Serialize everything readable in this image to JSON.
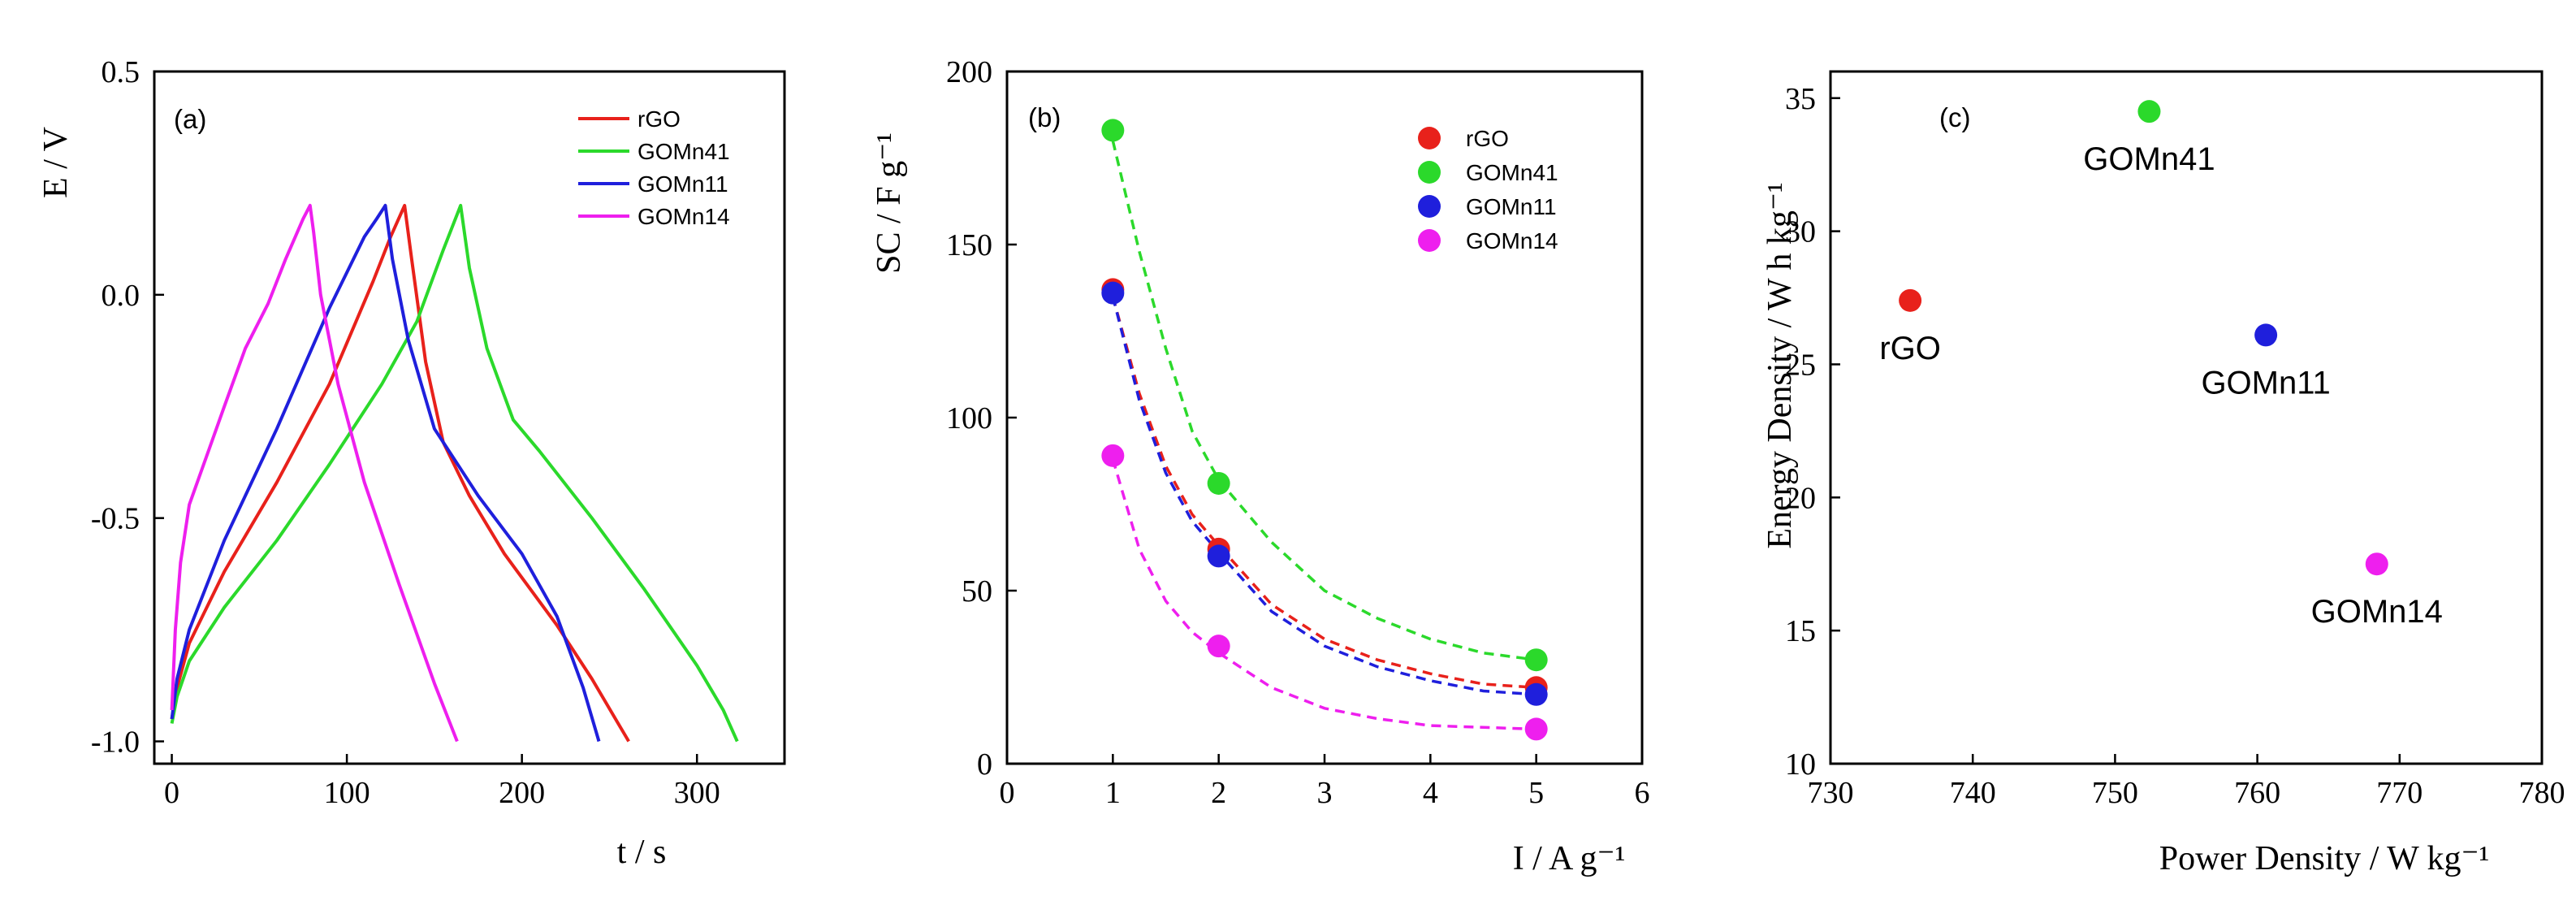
{
  "chart_data": [
    {
      "panel_label": "(a)",
      "type": "line",
      "xlabel": "t / s",
      "ylabel": "E / V",
      "xlim": [
        -10,
        350
      ],
      "ylim": [
        -1.05,
        0.5
      ],
      "xticks": [
        0,
        100,
        200,
        300
      ],
      "xtick_labels": [
        "0",
        "100",
        "200",
        "300"
      ],
      "yticks": [
        0.5,
        0.0,
        -0.5,
        -1.0
      ],
      "ytick_labels": [
        "0.5",
        "0.0",
        "-0.5",
        "-1.0"
      ],
      "legend": {
        "location": "top-right"
      },
      "series": [
        {
          "name": "rGO",
          "color": "#e8211b",
          "x": [
            0,
            3,
            10,
            30,
            60,
            90,
            115,
            125,
            133,
            137,
            145,
            155,
            170,
            190,
            220,
            240,
            255,
            261
          ],
          "y": [
            -0.95,
            -0.88,
            -0.78,
            -0.62,
            -0.42,
            -0.2,
            0.03,
            0.13,
            0.2,
            0.08,
            -0.15,
            -0.33,
            -0.45,
            -0.58,
            -0.74,
            -0.86,
            -0.96,
            -1.0
          ]
        },
        {
          "name": "GOMn41",
          "color": "#2bd92b",
          "x": [
            0,
            3,
            10,
            30,
            60,
            90,
            120,
            140,
            155,
            165,
            170,
            180,
            195,
            210,
            240,
            270,
            300,
            315,
            323
          ],
          "y": [
            -0.96,
            -0.9,
            -0.82,
            -0.7,
            -0.55,
            -0.38,
            -0.2,
            -0.06,
            0.1,
            0.2,
            0.06,
            -0.12,
            -0.28,
            -0.35,
            -0.5,
            -0.66,
            -0.83,
            -0.93,
            -1.0
          ]
        },
        {
          "name": "GOMn11",
          "color": "#1f1fdc",
          "x": [
            0,
            3,
            10,
            30,
            60,
            90,
            110,
            117,
            122,
            126,
            135,
            150,
            175,
            200,
            220,
            235,
            244
          ],
          "y": [
            -0.95,
            -0.86,
            -0.75,
            -0.55,
            -0.3,
            -0.03,
            0.13,
            0.17,
            0.2,
            0.08,
            -0.1,
            -0.3,
            -0.45,
            -0.58,
            -0.72,
            -0.88,
            -1.0
          ]
        },
        {
          "name": "GOMn14",
          "color": "#ee1fee",
          "x": [
            0,
            2,
            5,
            10,
            20,
            30,
            42,
            55,
            65,
            75,
            79,
            81,
            85,
            95,
            110,
            130,
            150,
            163
          ],
          "y": [
            -0.93,
            -0.75,
            -0.6,
            -0.47,
            -0.36,
            -0.25,
            -0.12,
            -0.02,
            0.08,
            0.17,
            0.2,
            0.14,
            0.0,
            -0.2,
            -0.42,
            -0.65,
            -0.87,
            -1.0
          ]
        }
      ]
    },
    {
      "panel_label": "(b)",
      "type": "scatter",
      "xlabel": "I / A g⁻¹",
      "ylabel": "SC / F g⁻¹",
      "xlim": [
        0,
        6
      ],
      "ylim": [
        0,
        200
      ],
      "xticks": [
        0,
        1,
        2,
        3,
        4,
        5,
        6
      ],
      "xtick_labels": [
        "0",
        "1",
        "2",
        "3",
        "4",
        "5",
        "6"
      ],
      "yticks": [
        0,
        50,
        100,
        150,
        200
      ],
      "ytick_labels": [
        "0",
        "50",
        "100",
        "150",
        "200"
      ],
      "legend": {
        "location": "top-right"
      },
      "fit_line_style": "dashed",
      "series": [
        {
          "name": "rGO",
          "color": "#e8211b",
          "x": [
            1,
            2,
            5
          ],
          "y": [
            137,
            62,
            22
          ],
          "fit_x": [
            1,
            1.25,
            1.5,
            1.75,
            2,
            2.5,
            3,
            3.5,
            4,
            4.5,
            5
          ],
          "fit_y": [
            135,
            107,
            86,
            72,
            63,
            46,
            36,
            30,
            26,
            23,
            22
          ]
        },
        {
          "name": "GOMn41",
          "color": "#2bd92b",
          "x": [
            1,
            2,
            5
          ],
          "y": [
            183,
            81,
            30
          ],
          "fit_x": [
            1,
            1.25,
            1.5,
            1.75,
            2,
            2.5,
            3,
            3.5,
            4,
            4.5,
            5
          ],
          "fit_y": [
            180,
            148,
            120,
            96,
            82,
            64,
            50,
            42,
            36,
            32,
            30
          ]
        },
        {
          "name": "GOMn11",
          "color": "#1f1fdc",
          "x": [
            1,
            2,
            5
          ],
          "y": [
            136,
            60,
            20
          ],
          "fit_x": [
            1,
            1.25,
            1.5,
            1.75,
            2,
            2.5,
            3,
            3.5,
            4,
            4.5,
            5
          ],
          "fit_y": [
            135,
            105,
            84,
            70,
            61,
            44,
            34,
            28,
            24,
            21,
            20
          ]
        },
        {
          "name": "GOMn14",
          "color": "#ee1fee",
          "x": [
            1,
            2,
            5
          ],
          "y": [
            89,
            34,
            10
          ],
          "fit_x": [
            1,
            1.25,
            1.5,
            1.75,
            2,
            2.5,
            3,
            3.5,
            4,
            4.5,
            5
          ],
          "fit_y": [
            88,
            62,
            47,
            38,
            32,
            22,
            16,
            13,
            11,
            10.5,
            10
          ]
        }
      ]
    },
    {
      "panel_label": "(c)",
      "type": "scatter",
      "xlabel": "Power Density / W kg⁻¹",
      "ylabel": "Energy Density / W h kg⁻¹",
      "xlim": [
        730,
        780
      ],
      "ylim": [
        10,
        36
      ],
      "xticks": [
        730,
        740,
        750,
        760,
        770,
        780
      ],
      "xtick_labels": [
        "730",
        "740",
        "750",
        "760",
        "770",
        "780"
      ],
      "yticks": [
        10,
        15,
        20,
        25,
        30,
        35
      ],
      "ytick_labels": [
        "10",
        "15",
        "20",
        "25",
        "30",
        "35"
      ],
      "points": [
        {
          "name": "rGO",
          "color": "#e8211b",
          "x": 735.6,
          "y": 27.4,
          "label_anchor": "below"
        },
        {
          "name": "GOMn41",
          "color": "#2bd92b",
          "x": 752.4,
          "y": 34.5,
          "label_anchor": "below"
        },
        {
          "name": "GOMn11",
          "color": "#1f1fdc",
          "x": 760.6,
          "y": 26.1,
          "label_anchor": "below"
        },
        {
          "name": "GOMn14",
          "color": "#ee1fee",
          "x": 768.4,
          "y": 17.5,
          "label_anchor": "below"
        }
      ]
    }
  ]
}
